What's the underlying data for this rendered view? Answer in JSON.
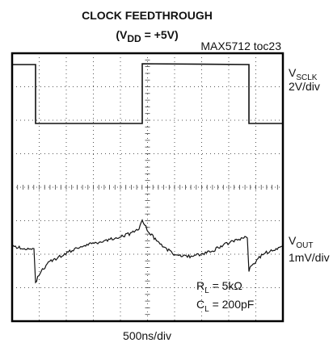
{
  "chart_data": {
    "type": "scope",
    "title": "CLOCK FEEDTHROUGH",
    "subtitle": {
      "pre": "(V",
      "sub": "DD",
      "post": " = +5V)"
    },
    "figure_id": "MAX5712 toc23",
    "x_scale": "500ns/div",
    "channels": [
      {
        "name": {
          "main": "V",
          "sub": "SCLK"
        },
        "scale": "2V/div"
      },
      {
        "name": {
          "main": "V",
          "sub": "OUT"
        },
        "scale": "1mV/div"
      }
    ],
    "annotations": [
      {
        "main": "R",
        "sub": "L",
        "rest": " = 5kΩ"
      },
      {
        "main": "C",
        "sub": "L",
        "rest": " = 200pF"
      }
    ]
  }
}
